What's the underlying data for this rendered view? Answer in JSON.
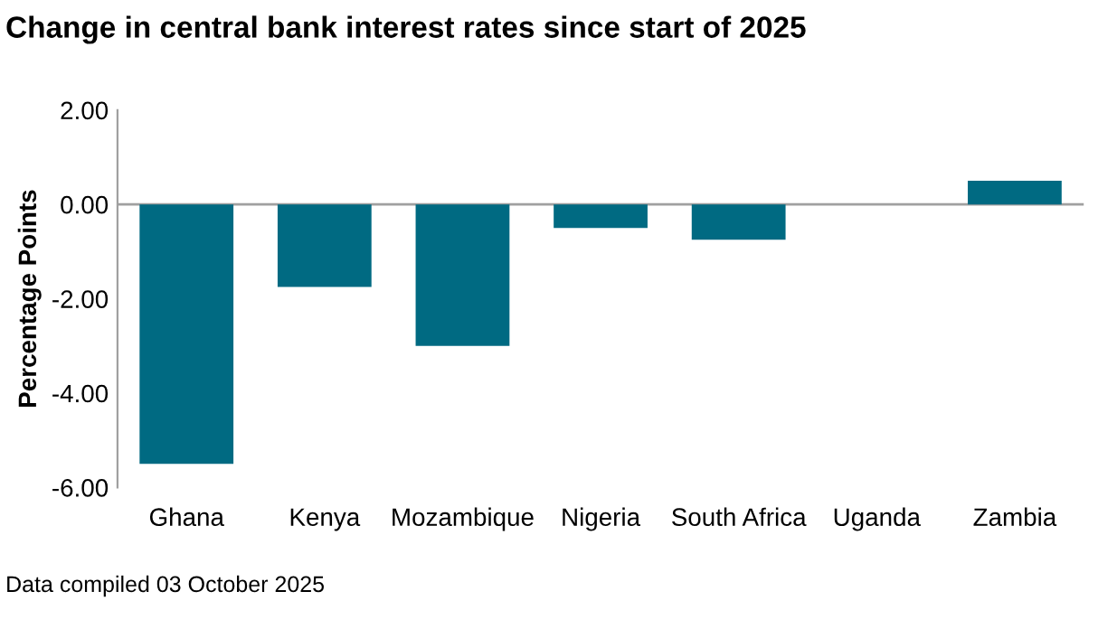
{
  "chart_data": {
    "type": "bar",
    "title": "Change in central bank interest rates since start of 2025",
    "ylabel": "Percentage Points",
    "categories": [
      "Ghana",
      "Kenya",
      "Mozambique",
      "Nigeria",
      "South Africa",
      "Uganda",
      "Zambia"
    ],
    "values": [
      -5.5,
      -1.75,
      -3.0,
      -0.5,
      -0.75,
      0,
      0.5
    ],
    "color": "#006a82",
    "ylim": [
      -6,
      2
    ],
    "yticks": [
      {
        "value": 2,
        "label": "2.00"
      },
      {
        "value": 0,
        "label": "0.00"
      },
      {
        "value": -2,
        "label": "-2.00"
      },
      {
        "value": -4,
        "label": "-4.00"
      },
      {
        "value": -6,
        "label": "-6.00"
      }
    ],
    "ref_lines": [
      {
        "axis": "y",
        "value": 0,
        "color": "#a0a0a0"
      }
    ],
    "annotations": [
      "Data compiled 03 October 2025"
    ]
  }
}
